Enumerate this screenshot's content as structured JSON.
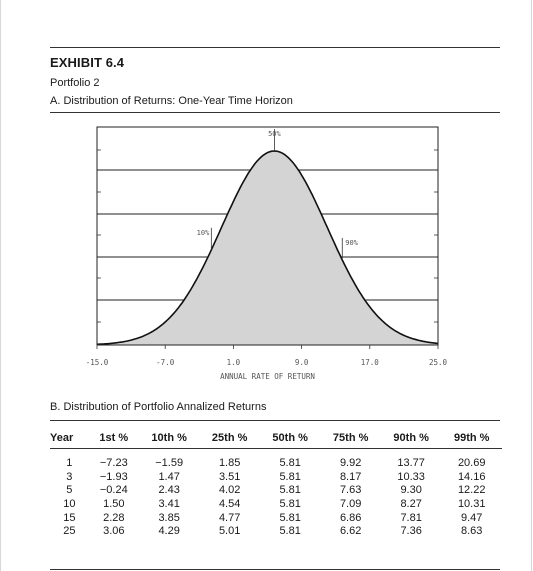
{
  "exhibit": {
    "title": "EXHIBIT 6.4",
    "subtitle": "Portfolio 2"
  },
  "section_a": {
    "heading": "A. Distribution of Returns: One-Year Time Horizon"
  },
  "section_b": {
    "heading": "B. Distribution of Portfolio Annalized Returns"
  },
  "chart_data": {
    "type": "area",
    "title": "",
    "xlabel": "ANNUAL RATE OF RETURN",
    "ylabel": "",
    "xlim": [
      -15.0,
      25.0
    ],
    "x_ticks": [
      "-15.0",
      "-7.0",
      "1.0",
      "9.0",
      "17.0",
      "25.0"
    ],
    "x_tick_values": [
      -15.0,
      -7.0,
      1.0,
      9.0,
      17.0,
      25.0
    ],
    "distribution": {
      "shape": "normal",
      "mean": 5.81,
      "sd": 6.2
    },
    "grid": "horizontal",
    "fill_color": "#d4d4d4",
    "line_color": "#111111",
    "annotations": [
      {
        "label": "10%",
        "x": -1.59
      },
      {
        "label": "50%",
        "x": 5.81
      },
      {
        "label": "90%",
        "x": 13.77
      }
    ]
  },
  "table": {
    "headers": [
      "Year",
      "1st %",
      "10th %",
      "25th %",
      "50th %",
      "75th %",
      "90th %",
      "99th %"
    ],
    "rows": [
      [
        "1",
        "−7.23",
        "−1.59",
        "1.85",
        "5.81",
        "9.92",
        "13.77",
        "20.69"
      ],
      [
        "3",
        "−1.93",
        "1.47",
        "3.51",
        "5.81",
        "8.17",
        "10.33",
        "14.16"
      ],
      [
        "5",
        "−0.24",
        "2.43",
        "4.02",
        "5.81",
        "7.63",
        "9.30",
        "12.22"
      ],
      [
        "10",
        "1.50",
        "3.41",
        "4.54",
        "5.81",
        "7.09",
        "8.27",
        "10.31"
      ],
      [
        "15",
        "2.28",
        "3.85",
        "4.77",
        "5.81",
        "6.86",
        "7.81",
        "9.47"
      ],
      [
        "25",
        "3.06",
        "4.29",
        "5.01",
        "5.81",
        "6.62",
        "7.36",
        "8.63"
      ]
    ]
  }
}
